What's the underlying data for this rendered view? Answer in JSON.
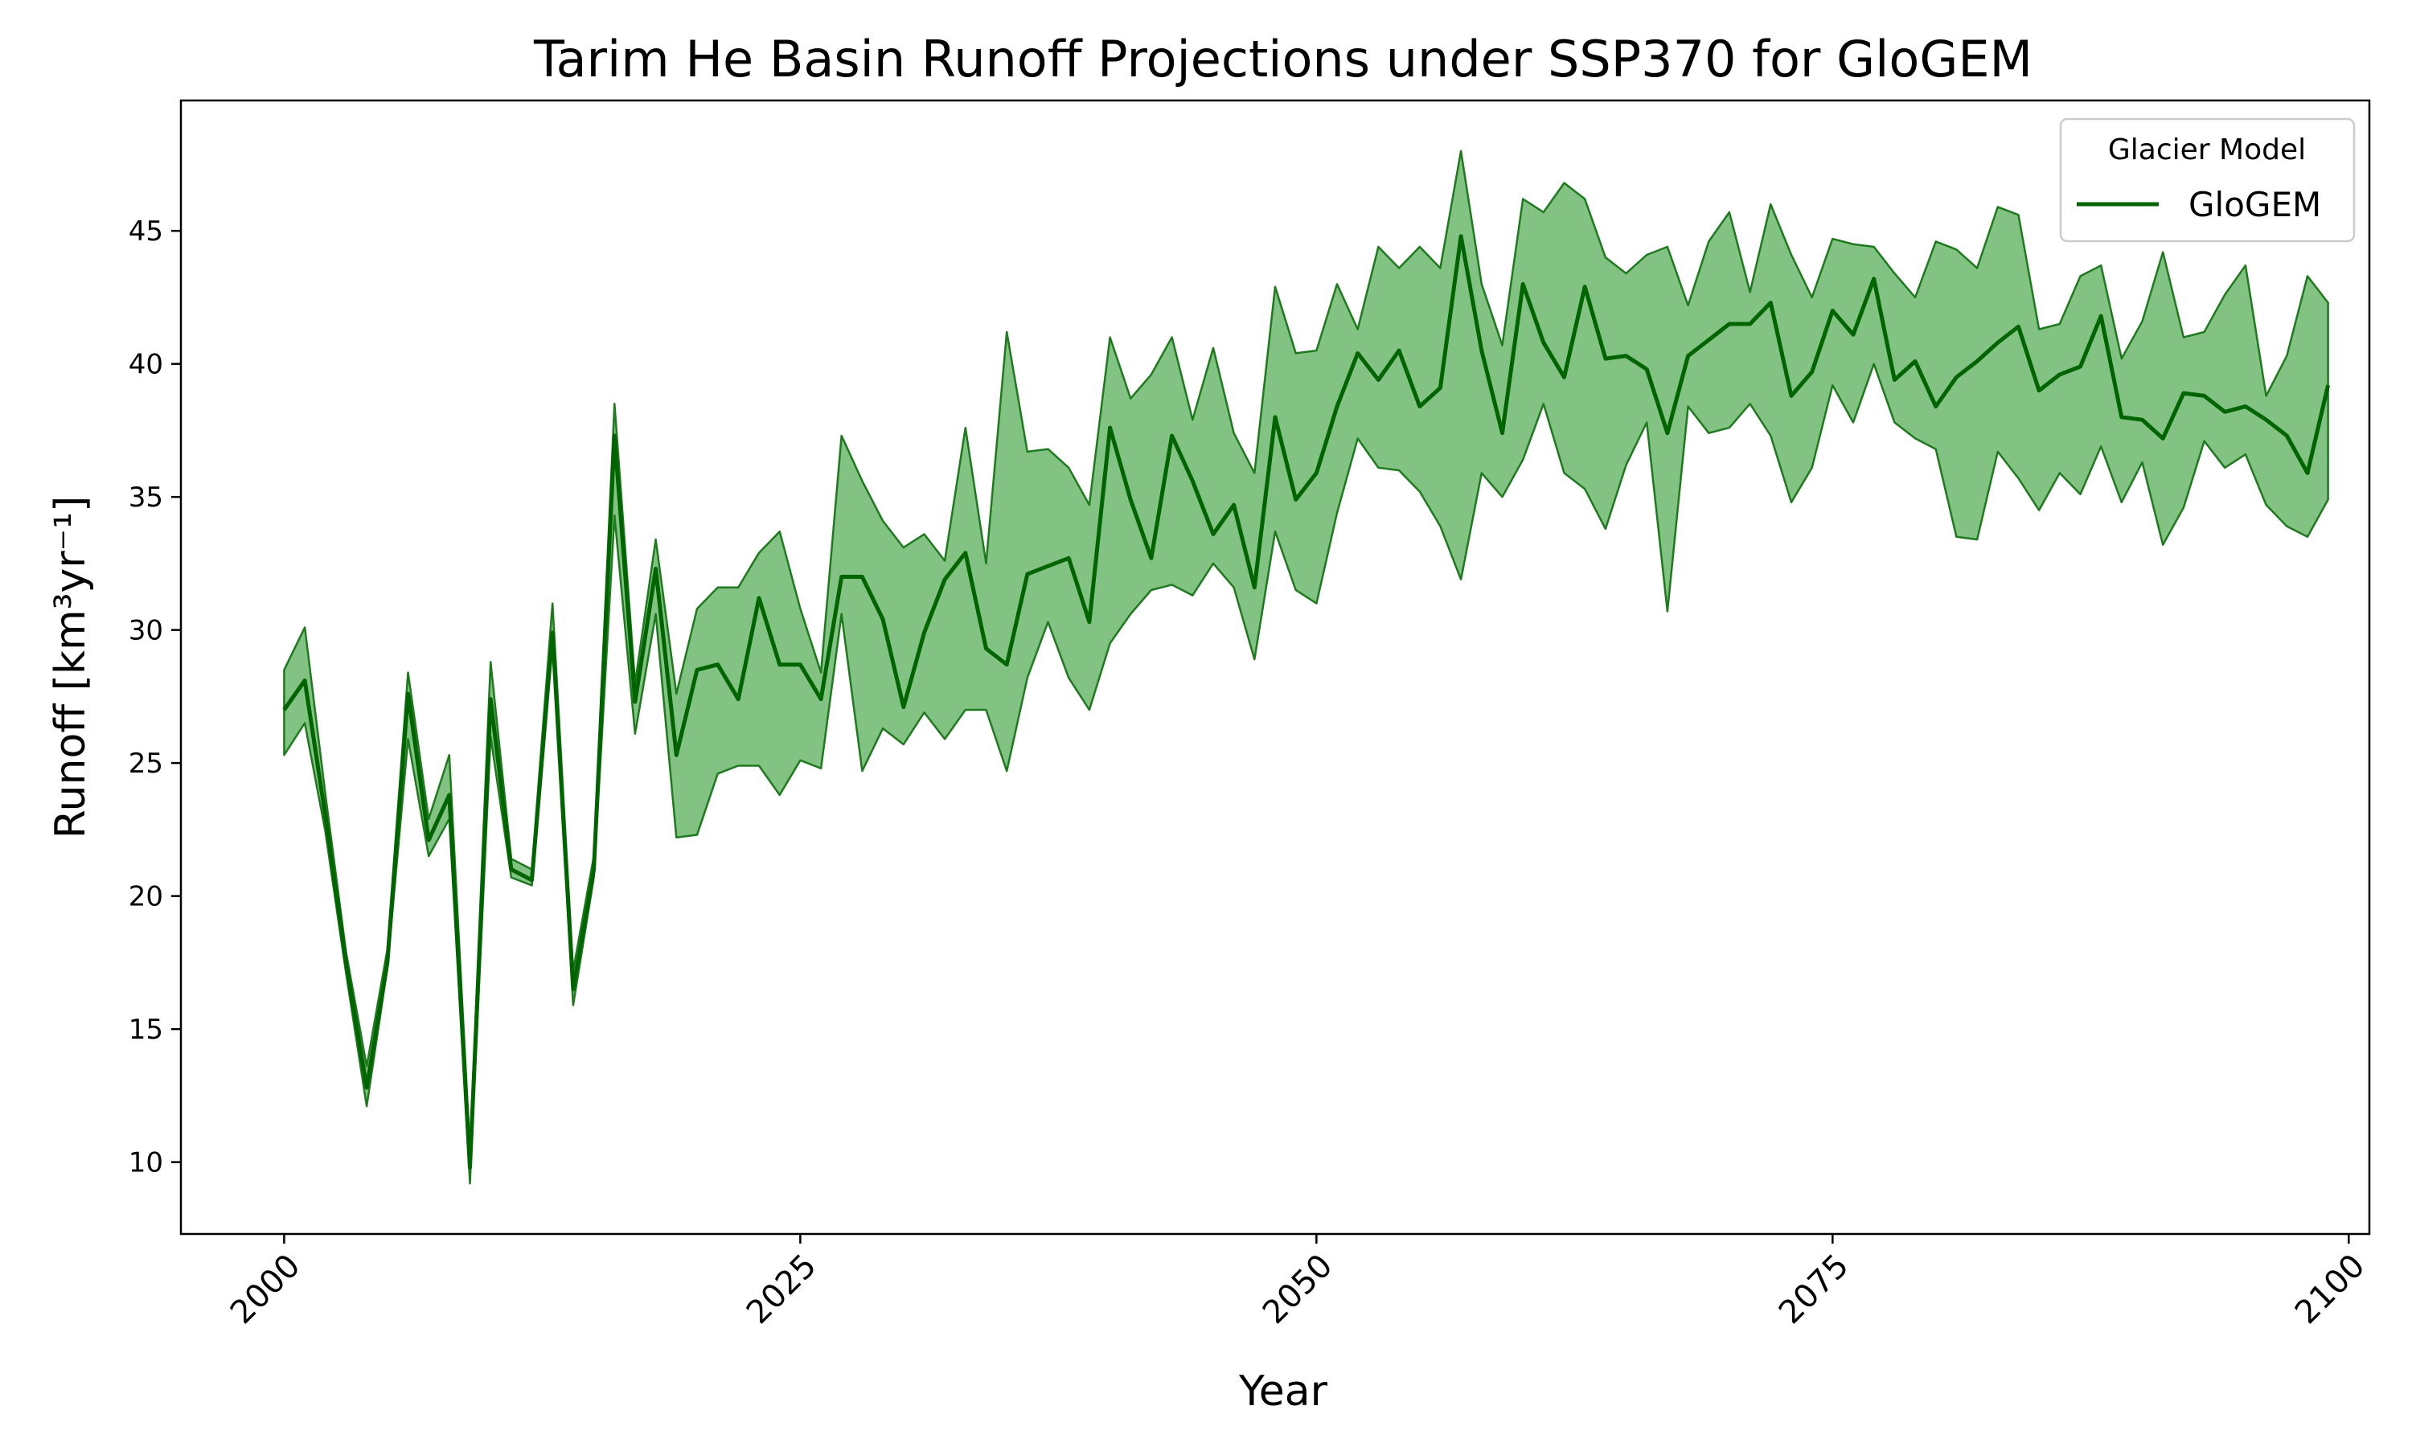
{
  "chart_data": {
    "type": "line",
    "title": "Tarim He Basin Runoff Projections under SSP370 for GloGEM",
    "xlabel": "Year",
    "ylabel": "Runoff",
    "ylabel_unit_tex": "[km³yr⁻¹]",
    "xlim": [
      1995,
      2101
    ],
    "ylim": [
      7.3,
      49.9
    ],
    "xticks": [
      2000,
      2025,
      2050,
      2075,
      2100
    ],
    "yticks": [
      10,
      15,
      20,
      25,
      30,
      35,
      40,
      45
    ],
    "grid": false,
    "legend": {
      "title": "Glacier Model",
      "placement": "top-right",
      "entries": [
        "GloGEM"
      ]
    },
    "colors": {
      "line": "#006400",
      "band_fill": "#2e9a2e",
      "band_edge": "#1f7a1f"
    },
    "x": [
      2000,
      2001,
      2002,
      2003,
      2004,
      2005,
      2006,
      2007,
      2008,
      2009,
      2010,
      2011,
      2012,
      2013,
      2014,
      2015,
      2016,
      2017,
      2018,
      2019,
      2020,
      2021,
      2022,
      2023,
      2024,
      2025,
      2026,
      2027,
      2028,
      2029,
      2030,
      2031,
      2032,
      2033,
      2034,
      2035,
      2036,
      2037,
      2038,
      2039,
      2040,
      2041,
      2042,
      2043,
      2044,
      2045,
      2046,
      2047,
      2048,
      2049,
      2050,
      2051,
      2052,
      2053,
      2054,
      2055,
      2056,
      2057,
      2058,
      2059,
      2060,
      2061,
      2062,
      2063,
      2064,
      2065,
      2066,
      2067,
      2068,
      2069,
      2070,
      2071,
      2072,
      2073,
      2074,
      2075,
      2076,
      2077,
      2078,
      2079,
      2080,
      2081,
      2082,
      2083,
      2084,
      2085,
      2086,
      2087,
      2088,
      2089,
      2090,
      2091,
      2092,
      2093,
      2094,
      2095,
      2096,
      2097,
      2098,
      2099
    ],
    "series": [
      {
        "name": "GloGEM",
        "values": [
          27.0,
          28.1,
          23.0,
          17.5,
          12.8,
          17.5,
          27.6,
          22.1,
          23.8,
          9.8,
          27.4,
          21.0,
          20.6,
          29.9,
          16.5,
          21.0,
          37.3,
          27.3,
          32.3,
          25.3,
          28.5,
          28.7,
          27.4,
          31.2,
          28.7,
          28.7,
          27.4,
          32.0,
          32.0,
          30.4,
          27.1,
          29.9,
          31.9,
          32.9,
          29.3,
          28.7,
          32.1,
          32.4,
          32.7,
          30.3,
          37.6,
          34.9,
          32.7,
          37.3,
          35.6,
          33.6,
          34.7,
          31.6,
          38.0,
          34.9,
          35.9,
          38.4,
          40.4,
          39.4,
          40.5,
          38.4,
          39.1,
          44.8,
          40.5,
          37.4,
          43.0,
          40.8,
          39.5,
          42.9,
          40.2,
          40.3,
          39.8,
          37.4,
          40.3,
          40.9,
          41.5,
          41.5,
          42.3,
          38.8,
          39.7,
          42.0,
          41.1,
          43.2,
          39.4,
          40.1,
          38.4,
          39.5,
          40.1,
          40.8,
          41.4,
          39.0,
          39.6,
          39.9,
          41.8,
          38.0,
          37.9,
          37.2,
          38.9,
          38.8,
          38.2,
          38.4,
          37.9,
          37.3,
          35.9,
          39.2
        ],
        "upper": [
          28.5,
          30.1,
          23.8,
          17.9,
          13.6,
          18.0,
          28.4,
          22.9,
          25.3,
          10.5,
          28.8,
          21.4,
          21.0,
          31.0,
          17.2,
          21.5,
          38.5,
          28.0,
          33.4,
          27.6,
          30.8,
          31.6,
          31.6,
          32.9,
          33.7,
          30.8,
          28.4,
          37.3,
          35.6,
          34.1,
          33.1,
          33.6,
          32.6,
          37.6,
          32.5,
          41.2,
          36.7,
          36.8,
          36.1,
          34.7,
          41.0,
          38.7,
          39.6,
          41.0,
          37.9,
          40.6,
          37.4,
          35.9,
          42.9,
          40.4,
          40.5,
          43.0,
          41.3,
          44.4,
          43.6,
          44.4,
          43.6,
          48.0,
          43.0,
          40.7,
          46.2,
          45.7,
          46.8,
          46.2,
          44.0,
          43.4,
          44.1,
          44.4,
          42.2,
          44.6,
          45.7,
          42.7,
          46.0,
          44.1,
          42.5,
          44.7,
          44.5,
          44.4,
          43.4,
          42.5,
          44.6,
          44.3,
          43.6,
          45.9,
          45.6,
          41.3,
          41.5,
          43.3,
          43.7,
          40.2,
          41.6,
          44.2,
          41.0,
          41.2,
          42.6,
          43.7,
          38.8,
          40.3,
          43.3,
          42.3
        ],
        "lower": [
          25.3,
          26.5,
          22.4,
          17.1,
          12.1,
          17.3,
          25.9,
          21.5,
          22.9,
          9.2,
          26.0,
          20.7,
          20.4,
          29.5,
          15.9,
          20.7,
          34.3,
          26.1,
          30.6,
          22.2,
          22.3,
          24.6,
          24.9,
          24.9,
          23.8,
          25.1,
          24.8,
          30.6,
          24.7,
          26.3,
          25.7,
          26.9,
          25.9,
          27.0,
          27.0,
          24.7,
          28.2,
          30.3,
          28.2,
          27.0,
          29.5,
          30.6,
          31.5,
          31.7,
          31.3,
          32.5,
          31.6,
          28.9,
          33.7,
          31.5,
          31.0,
          34.4,
          37.2,
          36.1,
          36.0,
          35.2,
          33.9,
          31.9,
          35.9,
          35.0,
          36.4,
          38.5,
          35.9,
          35.3,
          33.8,
          36.2,
          37.8,
          30.7,
          38.4,
          37.4,
          37.6,
          38.5,
          37.3,
          34.8,
          36.1,
          39.2,
          37.8,
          40.0,
          37.8,
          37.2,
          36.8,
          33.5,
          33.4,
          36.7,
          35.7,
          34.5,
          35.9,
          35.1,
          36.9,
          34.8,
          36.3,
          33.2,
          34.6,
          37.1,
          36.1,
          36.6,
          34.7,
          33.9,
          33.5,
          34.9
        ]
      }
    ]
  }
}
